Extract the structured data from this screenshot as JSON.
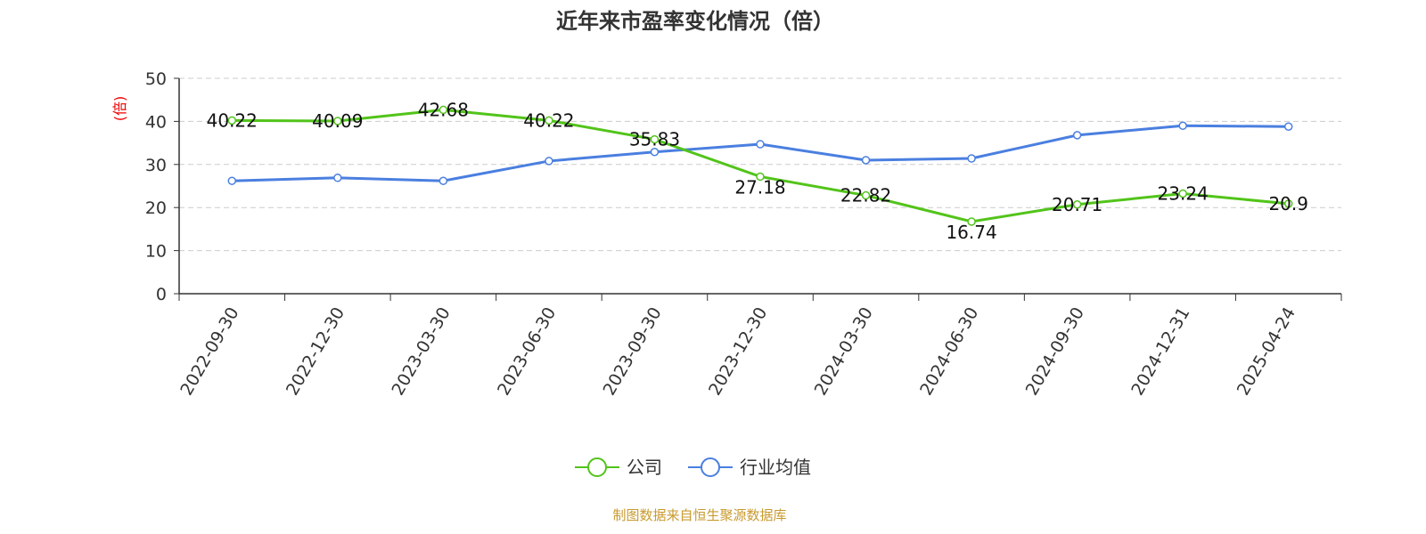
{
  "chart_data": {
    "type": "line",
    "title": "近年来市盈率变化情况（倍）",
    "ylabel": "(倍)",
    "xlabel": "",
    "ylim": [
      0,
      50
    ],
    "yticks": [
      0,
      10,
      20,
      30,
      40,
      50
    ],
    "grid": true,
    "legend_position": "bottom",
    "categories": [
      "2022-09-30",
      "2022-12-30",
      "2023-03-30",
      "2023-06-30",
      "2023-09-30",
      "2023-12-30",
      "2024-03-30",
      "2024-06-30",
      "2024-09-30",
      "2024-12-31",
      "2025-04-24"
    ],
    "series": [
      {
        "name": "公司",
        "color": "#52c41a",
        "values": [
          40.22,
          40.09,
          42.68,
          40.22,
          35.83,
          27.18,
          22.82,
          16.74,
          20.71,
          23.24,
          20.9
        ],
        "labels": [
          "40.22",
          "40.09",
          "42.68",
          "40.22",
          "35.83",
          "27.18",
          "22.82",
          "16.74",
          "20.71",
          "23.24",
          "20.9"
        ]
      },
      {
        "name": "行业均值",
        "color": "#4a7fe0",
        "values": [
          26.2,
          26.9,
          26.2,
          30.8,
          32.9,
          34.7,
          31.0,
          31.4,
          36.8,
          39.0,
          38.8
        ]
      }
    ],
    "source": "制图数据来自恒生聚源数据库"
  }
}
